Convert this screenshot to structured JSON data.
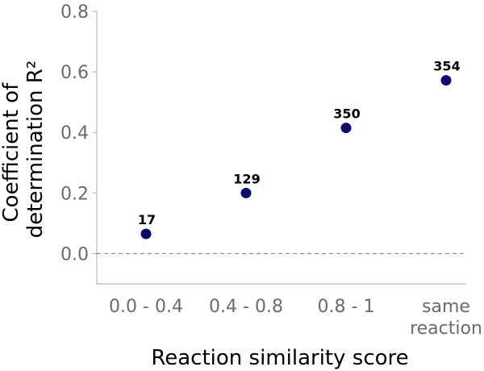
{
  "chart_data": {
    "type": "scatter",
    "categories": [
      "0.0 - 0.4",
      "0.4 - 0.8",
      "0.8 - 1",
      "same reaction"
    ],
    "category_lines": [
      [
        "0.0 - 0.4"
      ],
      [
        "0.4 - 0.8"
      ],
      [
        "0.8 - 1"
      ],
      [
        "same",
        "reaction"
      ]
    ],
    "values": [
      0.065,
      0.2,
      0.415,
      0.572
    ],
    "point_labels": [
      "17",
      "129",
      "350",
      "354"
    ],
    "xlabel": "Reaction similarity score",
    "ylabel_lines": [
      "Coefficient of",
      "determination R²"
    ],
    "ylim": [
      -0.1,
      0.8
    ],
    "yticks": [
      "0.0",
      "0.2",
      "0.4",
      "0.6",
      "0.8"
    ],
    "reference_line_y": 0,
    "grid": false,
    "colors": {
      "marker": "#0a0a6e",
      "tick_text": "#6b6b6b",
      "axis": "#aaaaaa",
      "reference_line": "#888888"
    }
  }
}
